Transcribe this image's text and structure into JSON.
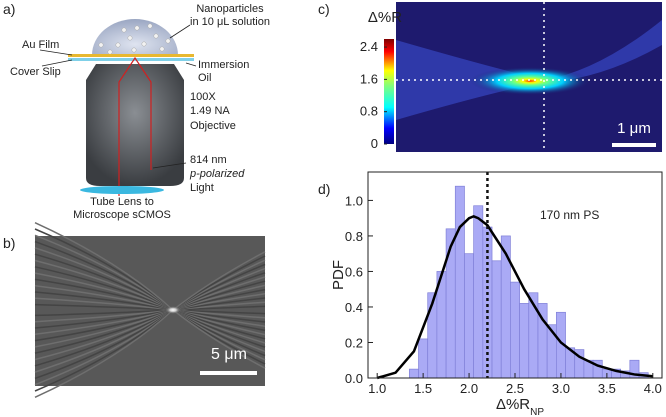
{
  "panel_labels": [
    "a)",
    "b)",
    "c)",
    "d)"
  ],
  "diagram": {
    "nanoparticles": [
      "Nanoparticles",
      "in 10 μL solution"
    ],
    "au_film": "Au Film",
    "cover_slip": "Cover Slip",
    "immersion_oil": [
      "Immersion",
      "Oil"
    ],
    "objective": [
      "100X",
      "1.49 NA",
      "Objective"
    ],
    "light": [
      "814 nm",
      "p-polarized",
      "Light"
    ],
    "tube_lens": [
      "Tube Lens to",
      "Microscope sCMOS"
    ]
  },
  "image_b": {
    "scale_bar": "5 μm"
  },
  "image_c": {
    "colorbar_title": "Δ%R",
    "colorbar_lim": [
      0,
      2.6
    ],
    "colorbar_ticks": [
      0,
      0.8,
      1.6,
      2.4
    ],
    "scale_bar": "1 μm"
  },
  "chart_data": {
    "type": "histogram",
    "bins": [
      1.35,
      1.45,
      1.55,
      1.65,
      1.75,
      1.85,
      1.95,
      2.05,
      2.15,
      2.25,
      2.35,
      2.45,
      2.55,
      2.65,
      2.75,
      2.85,
      2.95,
      3.05,
      3.15,
      3.25,
      3.35,
      3.45,
      3.55,
      3.65,
      3.75,
      3.85,
      3.95
    ],
    "values": [
      0.05,
      0.22,
      0.48,
      0.6,
      0.84,
      1.08,
      0.7,
      0.97,
      0.85,
      0.66,
      0.8,
      0.54,
      0.42,
      0.48,
      0.42,
      0.3,
      0.37,
      0.17,
      0.16,
      0.1,
      0.1,
      0.05,
      0.05,
      0.04,
      0.1,
      0.03
    ],
    "color": "#aaaaf5",
    "fit": {
      "type": "line",
      "color": "#000000",
      "x": [
        1.0,
        1.2,
        1.4,
        1.6,
        1.8,
        1.9,
        2.0,
        2.05,
        2.1,
        2.2,
        2.4,
        2.6,
        2.8,
        3.0,
        3.2,
        3.4,
        3.6,
        3.8,
        4.0
      ],
      "values": [
        0.0,
        0.03,
        0.15,
        0.42,
        0.74,
        0.85,
        0.9,
        0.91,
        0.9,
        0.86,
        0.7,
        0.5,
        0.33,
        0.2,
        0.12,
        0.07,
        0.04,
        0.02,
        0.01
      ]
    },
    "reference_x": 2.2,
    "annotation": "170 nm PS",
    "xlabel": "Δ%R",
    "xlabel_subscript": "NP",
    "ylabel": "PDF",
    "xlim": [
      0.9,
      4.1
    ],
    "ylim": [
      0,
      1.16
    ],
    "xticks": [
      {
        "value": 1,
        "label": "1.0"
      },
      1.5,
      {
        "value": 2,
        "label": "2.0"
      },
      2.5,
      {
        "value": 3,
        "label": "3.0"
      },
      3.5,
      {
        "value": 4,
        "label": "4.0"
      }
    ],
    "yticks": [
      {
        "value": 0,
        "label": "0.0"
      },
      0.2,
      0.4,
      0.6,
      0.8,
      {
        "value": 1,
        "label": "1.0"
      }
    ]
  }
}
